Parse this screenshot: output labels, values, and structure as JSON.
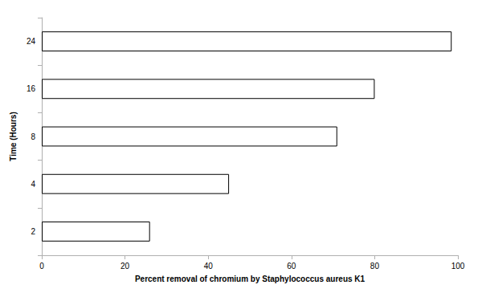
{
  "chart_data": {
    "type": "bar",
    "orientation": "horizontal",
    "x_label": "Percent removal of chromium by Staphylococcus aureus K1",
    "y_label": "Time (Hours)",
    "categories": [
      "2",
      "4",
      "8",
      "16",
      "24"
    ],
    "values": [
      26,
      45,
      71,
      80,
      98.5
    ],
    "color": "#ffffff",
    "xlim": [
      0,
      100
    ],
    "xticks": [
      0,
      20,
      40,
      60,
      80,
      100
    ],
    "grid": false
  }
}
